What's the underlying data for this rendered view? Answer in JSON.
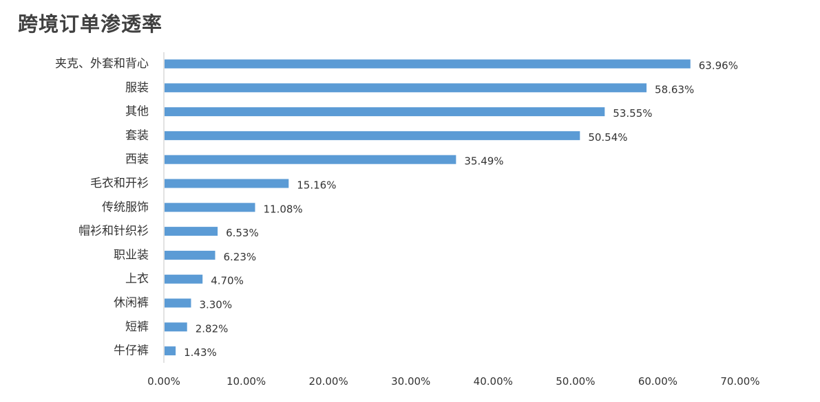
{
  "chart_data": {
    "type": "bar",
    "orientation": "horizontal",
    "title": "跨境订单渗透率",
    "categories": [
      "夹克、外套和背心",
      "服装",
      "其他",
      "套装",
      "西装",
      "毛衣和开衫",
      "传统服饰",
      "帽衫和针织衫",
      "职业装",
      "上衣",
      "休闲裤",
      "短裤",
      "牛仔裤"
    ],
    "values": [
      63.96,
      58.63,
      53.55,
      50.54,
      35.49,
      15.16,
      11.08,
      6.53,
      6.23,
      4.7,
      3.3,
      2.82,
      1.43
    ],
    "value_labels": [
      "63.96%",
      "58.63%",
      "53.55%",
      "50.54%",
      "35.49%",
      "15.16%",
      "11.08%",
      "6.53%",
      "6.23%",
      "4.70%",
      "3.30%",
      "2.82%",
      "1.43%"
    ],
    "xlim": [
      0,
      70
    ],
    "x_ticks": [
      0,
      10,
      20,
      30,
      40,
      50,
      60,
      70
    ],
    "x_tick_labels": [
      "0.00%",
      "10.00%",
      "20.00%",
      "30.00%",
      "40.00%",
      "50.00%",
      "60.00%",
      "70.00%"
    ],
    "grid": false,
    "legend": "none",
    "bar_color": "#5B9BD5"
  }
}
